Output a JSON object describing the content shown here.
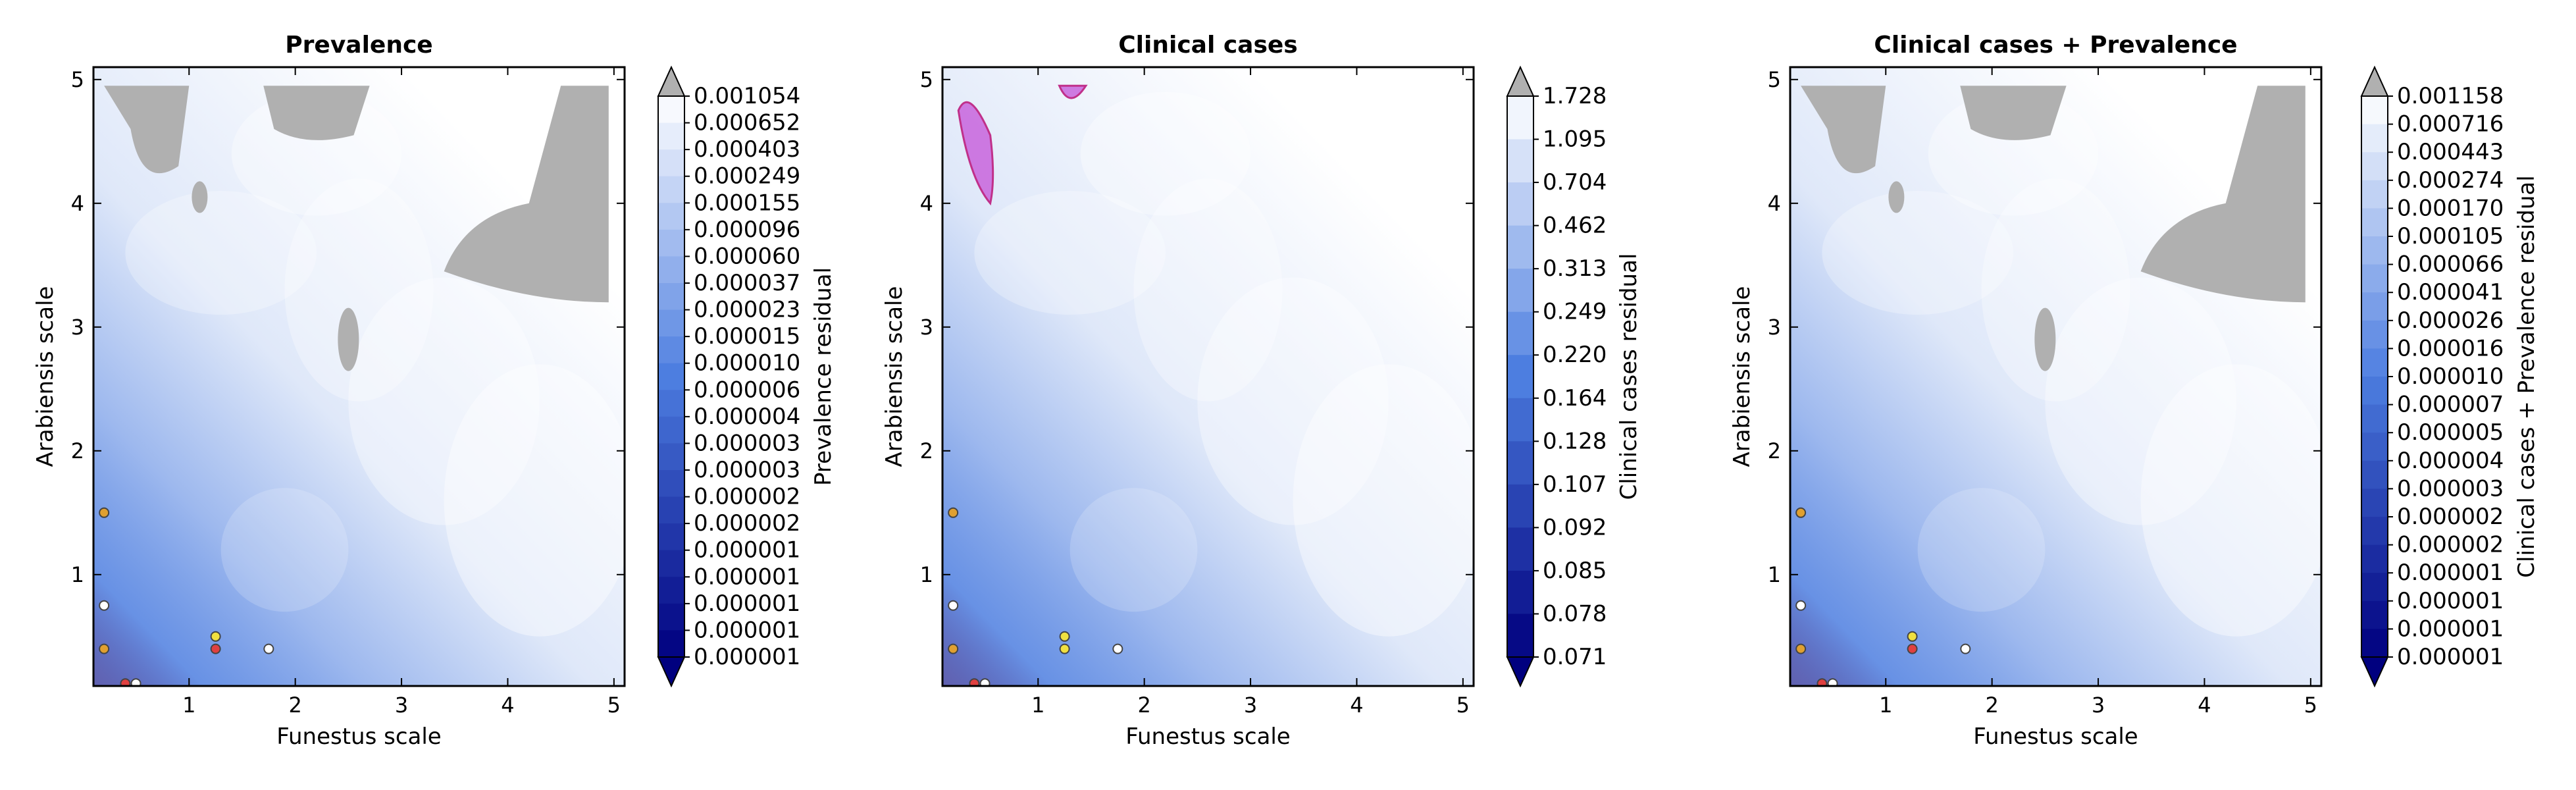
{
  "chart_data": [
    {
      "type": "heatmap",
      "title": "Prevalence",
      "xlabel": "Funestus scale",
      "ylabel": "Arabiensis scale",
      "xlim": [
        0.1,
        5.1
      ],
      "ylim": [
        0.1,
        5.1
      ],
      "xticks": [
        "1",
        "2",
        "3",
        "4",
        "5"
      ],
      "yticks": [
        "1",
        "2",
        "3",
        "4",
        "5"
      ],
      "colorbar_label": "Prevalence residual",
      "colorbar_ticks": [
        "0.001054",
        "0.000652",
        "0.000403",
        "0.000249",
        "0.000155",
        "0.000096",
        "0.000060",
        "0.000037",
        "0.000023",
        "0.000015",
        "0.000010",
        "0.000006",
        "0.000004",
        "0.000003",
        "0.000003",
        "0.000002",
        "0.000002",
        "0.000001",
        "0.000001",
        "0.000001",
        "0.000001",
        "0.000001"
      ],
      "points": [
        {
          "x": 0.2,
          "y": 1.5,
          "color": "#e0a030"
        },
        {
          "x": 0.2,
          "y": 0.75,
          "color": "#ffffff"
        },
        {
          "x": 0.2,
          "y": 0.4,
          "color": "#e0a030"
        },
        {
          "x": 1.25,
          "y": 0.5,
          "color": "#f0e040"
        },
        {
          "x": 1.25,
          "y": 0.4,
          "color": "#e04040"
        },
        {
          "x": 1.75,
          "y": 0.4,
          "color": "#ffffff"
        },
        {
          "x": 0.4,
          "y": 0.12,
          "color": "#e04040"
        },
        {
          "x": 0.5,
          "y": 0.12,
          "color": "#ffffff"
        }
      ],
      "colors": {
        "dark": "#00007f",
        "mid": "#4d7ee0",
        "light": "#ffffff",
        "masked": "#b0b0b0",
        "outline": "#c0308a"
      }
    },
    {
      "type": "heatmap",
      "title": "Clinical cases",
      "xlabel": "Funestus scale",
      "ylabel": "Arabiensis scale",
      "xlim": [
        0.1,
        5.1
      ],
      "ylim": [
        0.1,
        5.1
      ],
      "xticks": [
        "1",
        "2",
        "3",
        "4",
        "5"
      ],
      "yticks": [
        "1",
        "2",
        "3",
        "4",
        "5"
      ],
      "colorbar_label": "Clinical cases residual",
      "colorbar_ticks": [
        "1.728",
        "1.095",
        "0.704",
        "0.462",
        "0.313",
        "0.249",
        "0.220",
        "0.164",
        "0.128",
        "0.107",
        "0.092",
        "0.085",
        "0.078",
        "0.071"
      ],
      "points": [
        {
          "x": 0.2,
          "y": 1.5,
          "color": "#e0a030"
        },
        {
          "x": 0.2,
          "y": 0.75,
          "color": "#ffffff"
        },
        {
          "x": 0.2,
          "y": 0.4,
          "color": "#e0a030"
        },
        {
          "x": 1.25,
          "y": 0.5,
          "color": "#f0e040"
        },
        {
          "x": 1.25,
          "y": 0.4,
          "color": "#f0e040"
        },
        {
          "x": 1.75,
          "y": 0.4,
          "color": "#ffffff"
        },
        {
          "x": 0.4,
          "y": 0.12,
          "color": "#e04040"
        },
        {
          "x": 0.5,
          "y": 0.12,
          "color": "#ffffff"
        }
      ],
      "colors": {
        "dark": "#00007f",
        "mid": "#4d7ee0",
        "light": "#ffffff",
        "masked": "#b0b0b0",
        "outline": "#c0308a"
      }
    },
    {
      "type": "heatmap",
      "title": "Clinical cases + Prevalence",
      "xlabel": "Funestus scale",
      "ylabel": "Arabiensis scale",
      "xlim": [
        0.1,
        5.1
      ],
      "ylim": [
        0.1,
        5.1
      ],
      "xticks": [
        "1",
        "2",
        "3",
        "4",
        "5"
      ],
      "yticks": [
        "1",
        "2",
        "3",
        "4",
        "5"
      ],
      "colorbar_label": "Clinical cases + Prevalence residual",
      "colorbar_ticks": [
        "0.001158",
        "0.000716",
        "0.000443",
        "0.000274",
        "0.000170",
        "0.000105",
        "0.000066",
        "0.000041",
        "0.000026",
        "0.000016",
        "0.000010",
        "0.000007",
        "0.000005",
        "0.000004",
        "0.000003",
        "0.000002",
        "0.000002",
        "0.000001",
        "0.000001",
        "0.000001",
        "0.000001"
      ],
      "points": [
        {
          "x": 0.2,
          "y": 1.5,
          "color": "#e0a030"
        },
        {
          "x": 0.2,
          "y": 0.75,
          "color": "#ffffff"
        },
        {
          "x": 0.2,
          "y": 0.4,
          "color": "#e0a030"
        },
        {
          "x": 1.25,
          "y": 0.5,
          "color": "#f0e040"
        },
        {
          "x": 1.25,
          "y": 0.4,
          "color": "#e04040"
        },
        {
          "x": 1.75,
          "y": 0.4,
          "color": "#ffffff"
        },
        {
          "x": 0.4,
          "y": 0.12,
          "color": "#e04040"
        },
        {
          "x": 0.5,
          "y": 0.12,
          "color": "#ffffff"
        }
      ],
      "colors": {
        "dark": "#00007f",
        "mid": "#4d7ee0",
        "light": "#ffffff",
        "masked": "#b0b0b0",
        "outline": "#c0308a"
      }
    }
  ]
}
